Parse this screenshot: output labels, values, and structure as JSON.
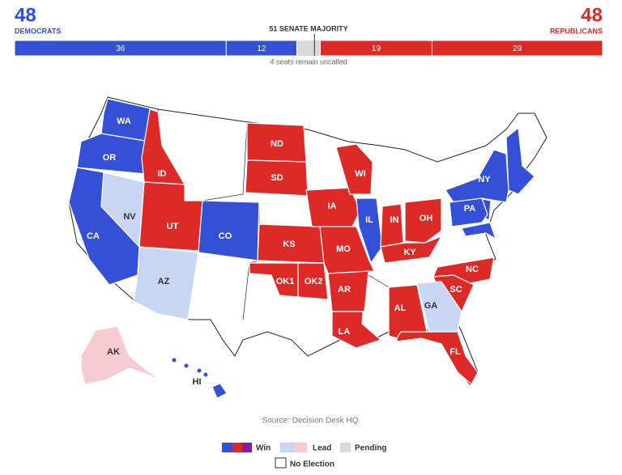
{
  "header": {
    "dem": {
      "count": 48,
      "label": "DEMOCRATS",
      "color": "#2f4fd6"
    },
    "rep": {
      "count": 48,
      "label": "REPUBLICANS",
      "color": "#d92b26"
    }
  },
  "seat_bar": {
    "range": [
      0,
      100
    ],
    "majority": {
      "value": 51,
      "label": "51 SENATE MAJORITY"
    },
    "dem_segments": [
      {
        "value": 36,
        "color": "#3350d6"
      },
      {
        "value": 12,
        "color": "#3350d6"
      }
    ],
    "rep_segments": [
      {
        "value": 19,
        "color": "#de2a26"
      },
      {
        "value": 29,
        "color": "#de2a26"
      }
    ],
    "note": "4 seats remain uncalled"
  },
  "map": {
    "states": [
      "WA",
      "OR",
      "CA",
      "NV",
      "ID",
      "UT",
      "AZ",
      "CO",
      "ND",
      "SD",
      "KS",
      "OK1",
      "OK2",
      "IA",
      "MO",
      "AR",
      "LA",
      "WI",
      "IL",
      "IN",
      "OH",
      "KY",
      "NC",
      "SC",
      "GA",
      "AL",
      "FL",
      "NY",
      "PA",
      "AK",
      "HI"
    ]
  },
  "source": "Source: Decision Desk HQ",
  "legend": {
    "win": "Win",
    "lead": "Lead",
    "pending": "Pending",
    "none": "No Election"
  }
}
